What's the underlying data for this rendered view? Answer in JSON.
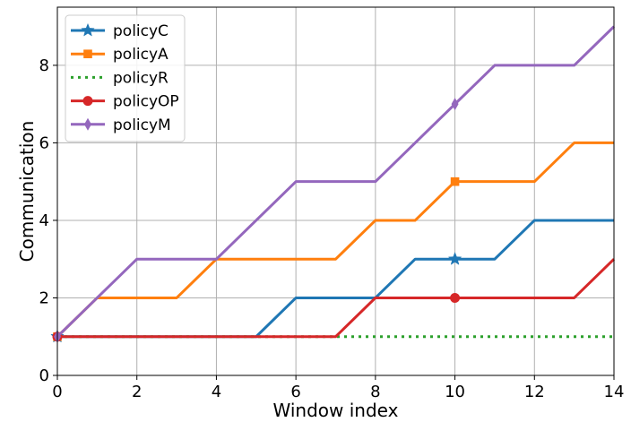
{
  "chart_data": {
    "type": "line",
    "title": "",
    "xlabel": "Window index",
    "ylabel": "Communication",
    "xlim": [
      0,
      14
    ],
    "ylim": [
      0,
      9.5
    ],
    "xticks": [
      0,
      2,
      4,
      6,
      8,
      10,
      12,
      14
    ],
    "yticks": [
      0,
      2,
      4,
      6,
      8
    ],
    "grid": true,
    "legend_position": "top-left",
    "x": [
      0,
      1,
      2,
      3,
      4,
      5,
      6,
      7,
      8,
      9,
      10,
      11,
      12,
      13,
      14
    ],
    "series": [
      {
        "name": "policyC",
        "color": "#1f77b4",
        "style": "solid",
        "marker": "star",
        "marker_at": [
          0,
          10
        ],
        "values": [
          1,
          1,
          1,
          1,
          1,
          1,
          2,
          2,
          2,
          3,
          3,
          3,
          4,
          4,
          4
        ]
      },
      {
        "name": "policyA",
        "color": "#ff7f0e",
        "style": "solid",
        "marker": "square",
        "marker_at": [
          0,
          10
        ],
        "values": [
          1,
          2,
          2,
          2,
          3,
          3,
          3,
          3,
          4,
          4,
          5,
          5,
          5,
          6,
          6
        ]
      },
      {
        "name": "policyR",
        "color": "#2ca02c",
        "style": "dotted",
        "marker": "none",
        "marker_at": [],
        "values": [
          1,
          1,
          1,
          1,
          1,
          1,
          1,
          1,
          1,
          1,
          1,
          1,
          1,
          1,
          1
        ]
      },
      {
        "name": "policyOP",
        "color": "#d62728",
        "style": "solid",
        "marker": "circle",
        "marker_at": [
          0,
          10
        ],
        "values": [
          1,
          1,
          1,
          1,
          1,
          1,
          1,
          1,
          2,
          2,
          2,
          2,
          2,
          2,
          3
        ]
      },
      {
        "name": "policyM",
        "color": "#9467bd",
        "style": "solid",
        "marker": "thin-diamond",
        "marker_at": [
          0,
          10
        ],
        "values": [
          1,
          2,
          3,
          3,
          3,
          4,
          5,
          5,
          5,
          6,
          7,
          8,
          8,
          8,
          9
        ]
      }
    ]
  }
}
